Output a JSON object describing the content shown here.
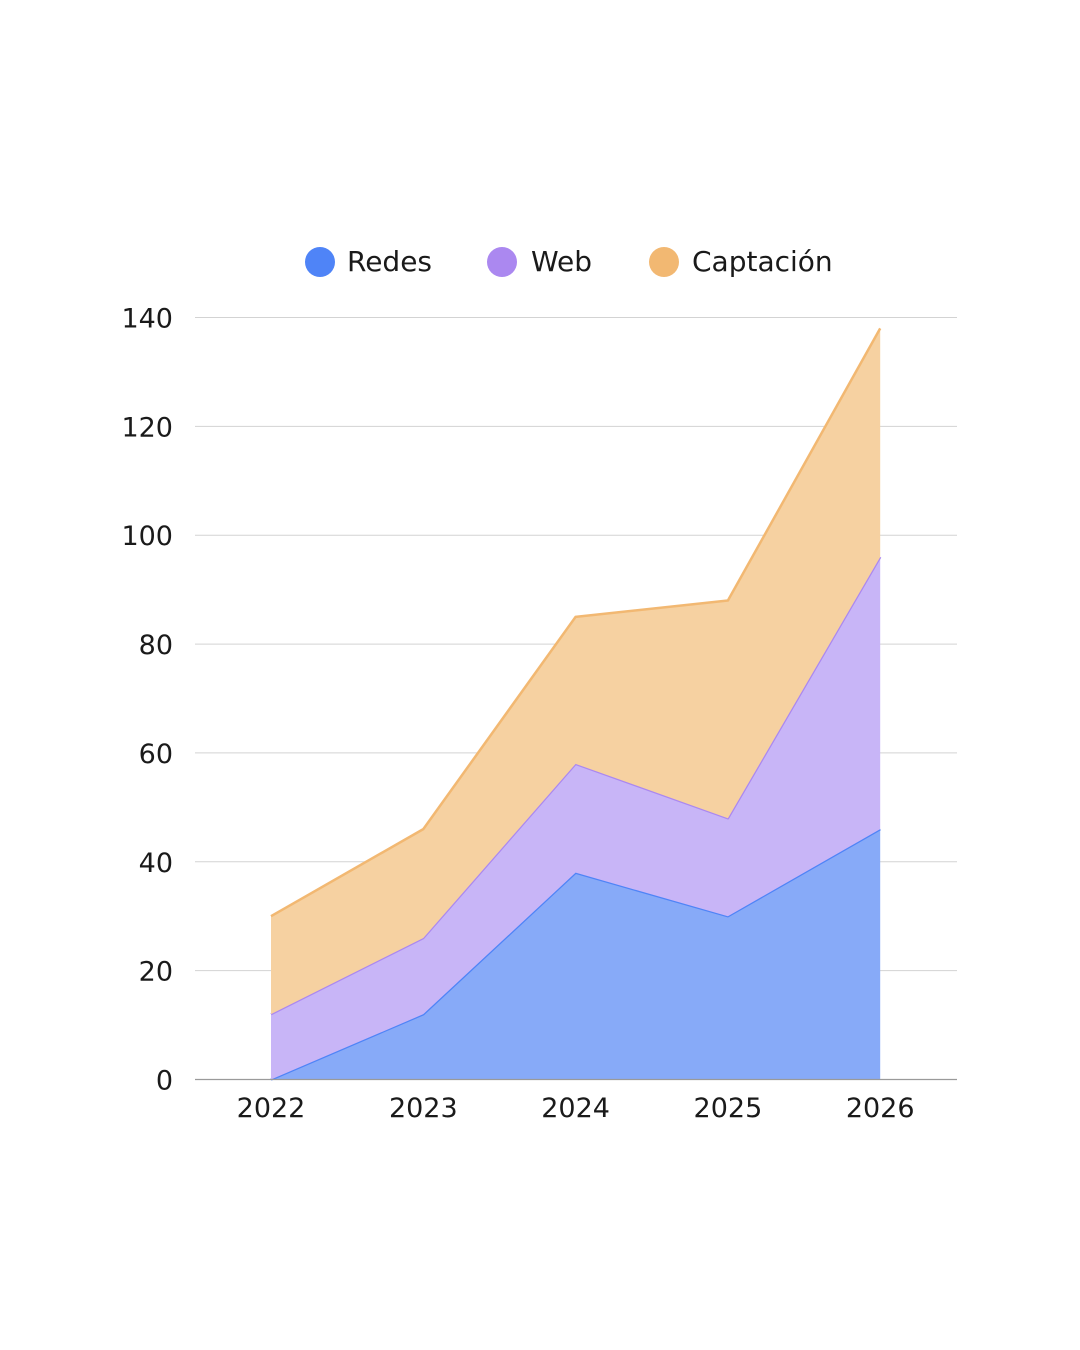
{
  "chart_data": {
    "type": "area",
    "stacked": true,
    "categories": [
      "2022",
      "2023",
      "2024",
      "2025",
      "2026"
    ],
    "series": [
      {
        "name": "Redes",
        "values": [
          0,
          12,
          38,
          30,
          46
        ],
        "color": "#4f84f7",
        "fill": "#87aaf8"
      },
      {
        "name": "Web",
        "values": [
          12,
          14,
          20,
          18,
          50
        ],
        "color": "#ab88f0",
        "fill": "#c8b5f7"
      },
      {
        "name": "Captación",
        "values": [
          18,
          20,
          27,
          40,
          42
        ],
        "color": "#f2b872",
        "fill": "#f6d1a1"
      }
    ],
    "ylim": [
      0,
      140
    ],
    "yticks": [
      0,
      20,
      40,
      60,
      80,
      100,
      120,
      140
    ],
    "grid": true,
    "legend": "top-center"
  }
}
